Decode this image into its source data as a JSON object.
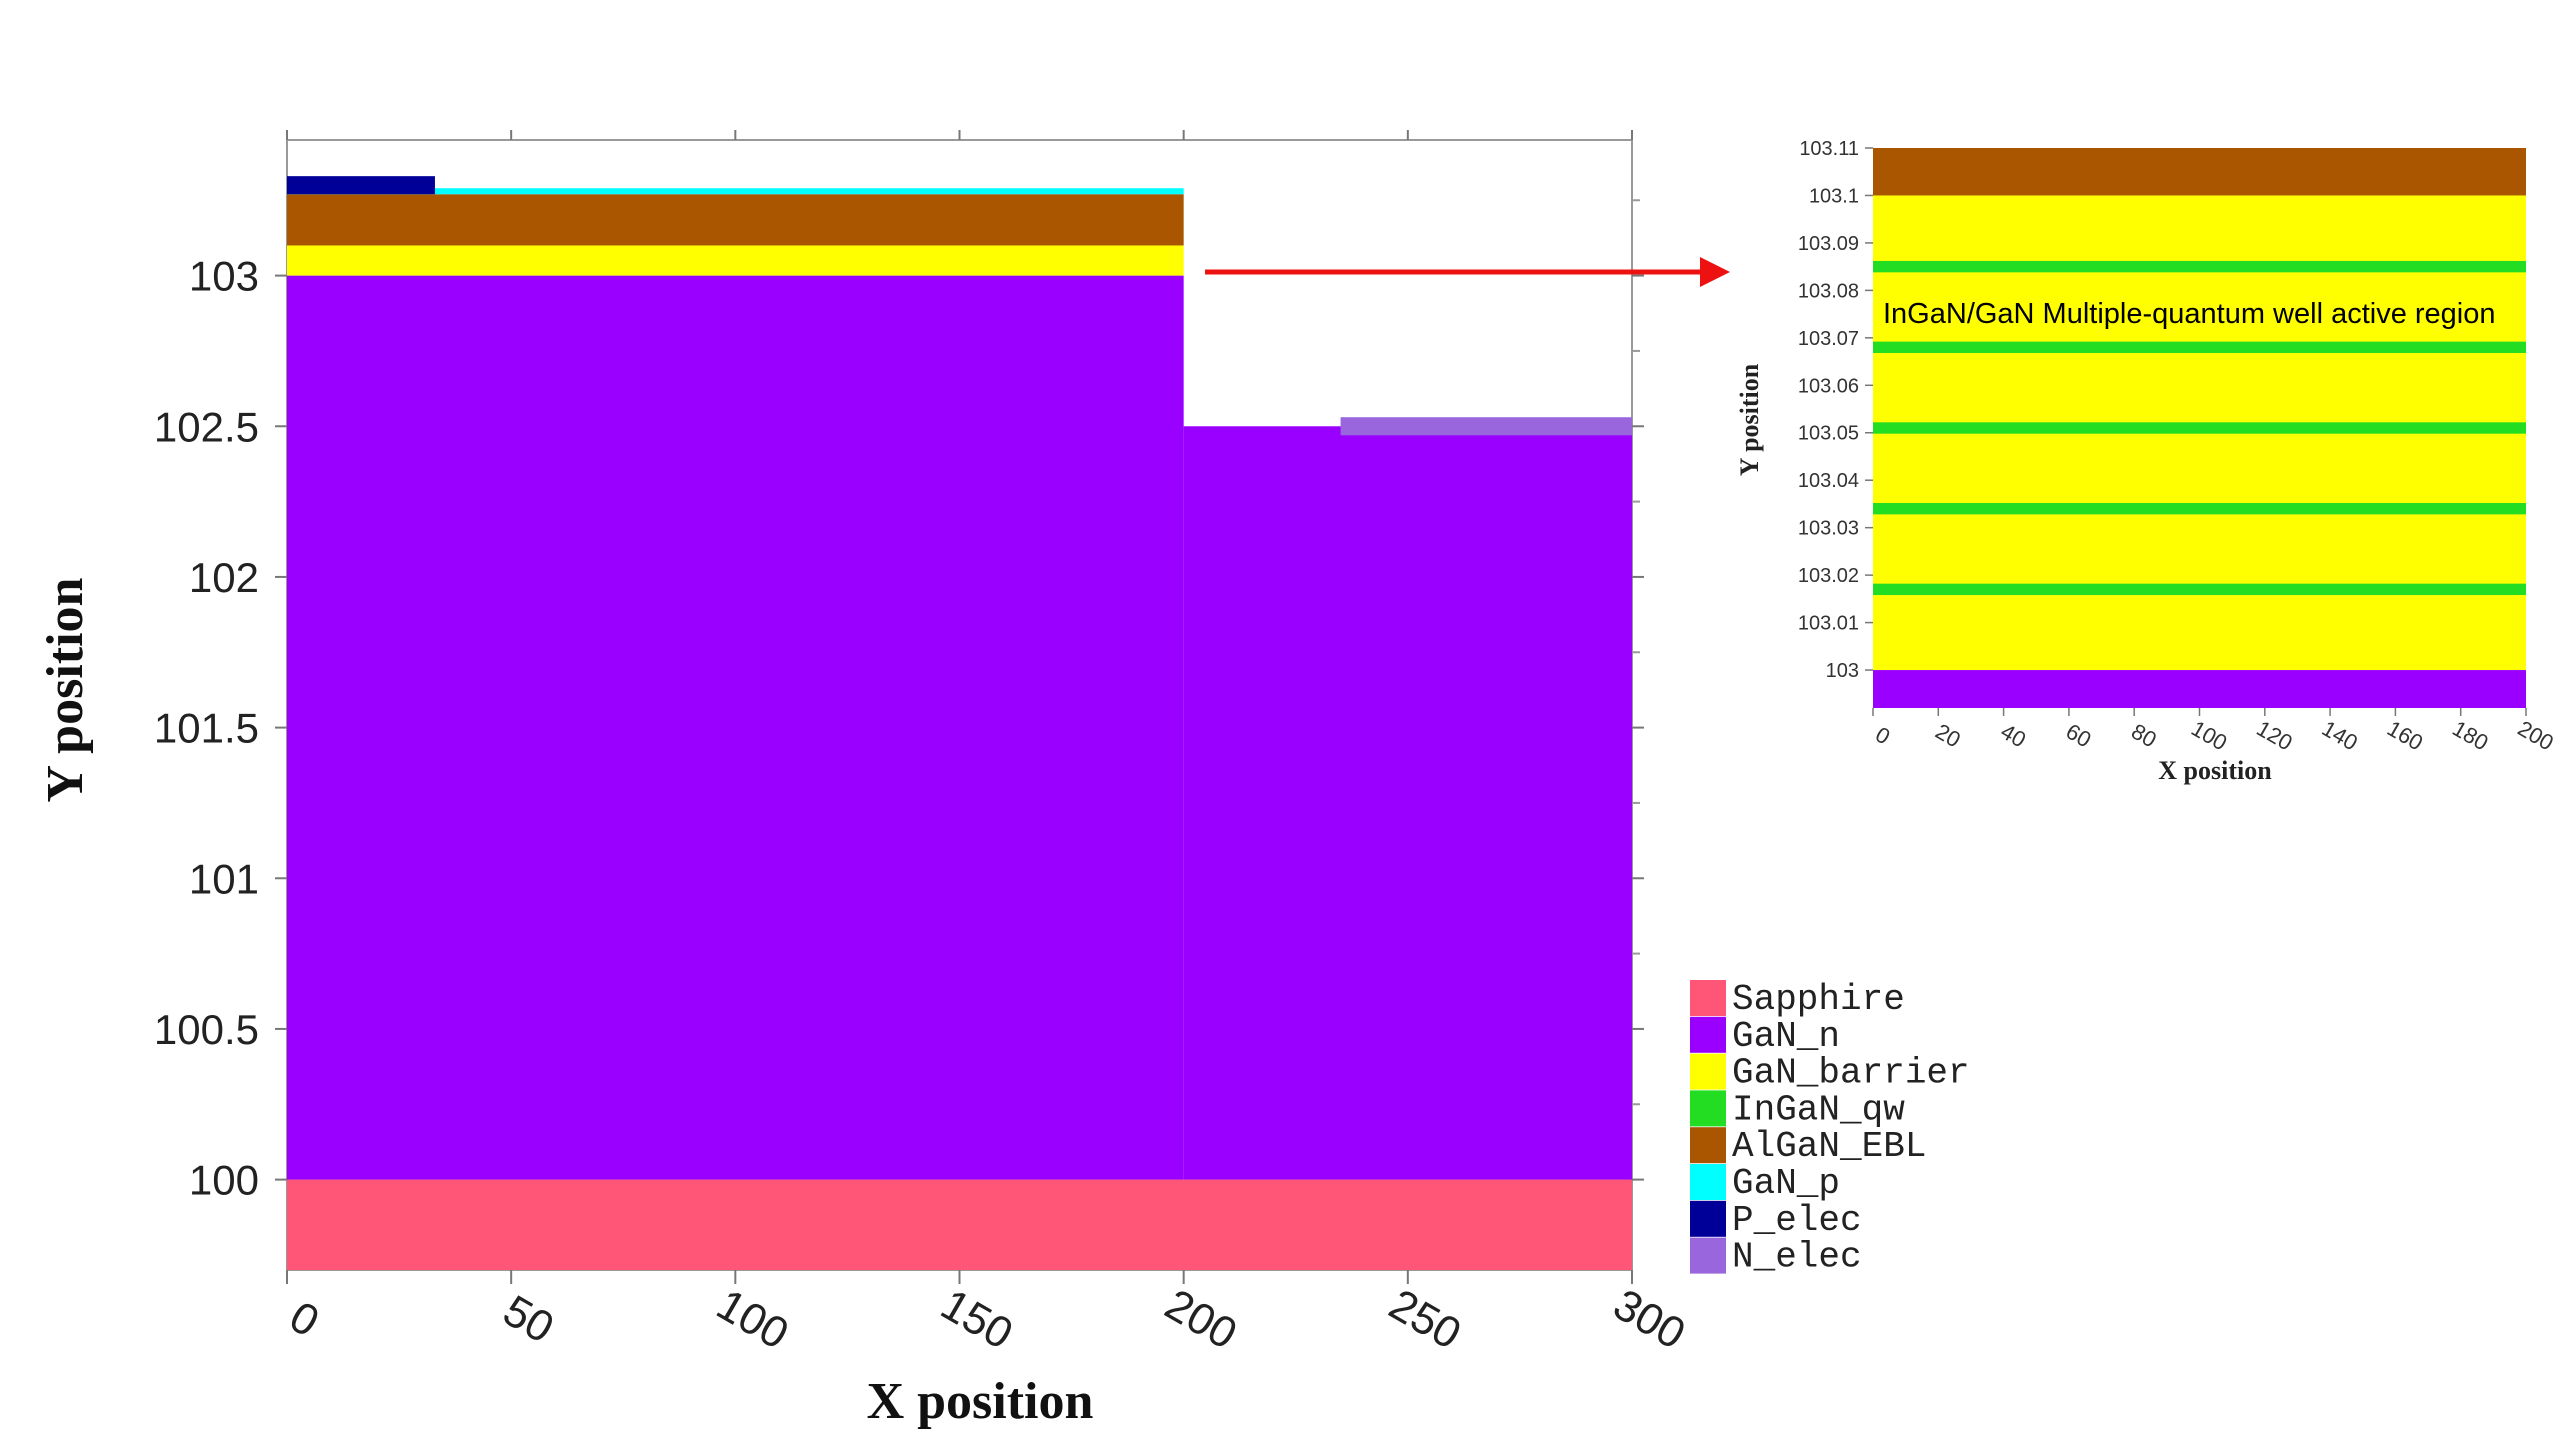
{
  "colors": {
    "Sapphire": "#ff5577",
    "GaN_n": "#9900ff",
    "GaN_barrier": "#ffff00",
    "InGaN_qw": "#22dd22",
    "AlGaN_EBL": "#aa5500",
    "GaN_p": "#00ffff",
    "P_elec": "#000099",
    "N_elec": "#9966dd",
    "arrow": "#ee1111"
  },
  "main_plot": {
    "xlabel": "X position",
    "ylabel": "Y position",
    "xlim": [
      0,
      300
    ],
    "ylim": [
      99.7,
      103.45
    ],
    "x_ticks": [
      "0",
      "50",
      "100",
      "150",
      "200",
      "250",
      "300"
    ],
    "y_ticks": [
      "100",
      "100.5",
      "101",
      "101.5",
      "102",
      "102.5",
      "103"
    ],
    "regions": [
      {
        "material": "Sapphire",
        "x": [
          0,
          300
        ],
        "y": [
          99.7,
          100
        ]
      },
      {
        "material": "GaN_n",
        "x": [
          0,
          200
        ],
        "y": [
          100,
          103
        ]
      },
      {
        "material": "GaN_n",
        "x": [
          200,
          300
        ],
        "y": [
          100,
          102.5
        ]
      },
      {
        "material": "GaN_barrier",
        "x": [
          0,
          200
        ],
        "y": [
          103,
          103.1
        ]
      },
      {
        "material": "AlGaN_EBL",
        "x": [
          0,
          200
        ],
        "y": [
          103.1,
          103.27
        ]
      },
      {
        "material": "GaN_p",
        "x": [
          0,
          200
        ],
        "y": [
          103.27,
          103.29
        ]
      },
      {
        "material": "P_elec",
        "x": [
          0,
          33
        ],
        "y": [
          103.27,
          103.33
        ]
      },
      {
        "material": "N_elec",
        "x": [
          235,
          300
        ],
        "y": [
          102.47,
          102.53
        ]
      }
    ]
  },
  "legend": [
    {
      "label": "Sapphire",
      "material": "Sapphire"
    },
    {
      "label": "GaN_n",
      "material": "GaN_n"
    },
    {
      "label": "GaN_barrier",
      "material": "GaN_barrier"
    },
    {
      "label": "InGaN_qw",
      "material": "InGaN_qw"
    },
    {
      "label": "AlGaN_EBL",
      "material": "AlGaN_EBL"
    },
    {
      "label": "GaN_p",
      "material": "GaN_p"
    },
    {
      "label": "P_elec",
      "material": "P_elec"
    },
    {
      "label": "N_elec",
      "material": "N_elec"
    }
  ],
  "inset": {
    "xlabel": "X position",
    "ylabel": "Y position",
    "xlim": [
      0,
      200
    ],
    "ylim": [
      102.992,
      103.11
    ],
    "x_ticks": [
      "0",
      "20",
      "40",
      "60",
      "80",
      "100",
      "120",
      "140",
      "160",
      "180",
      "200"
    ],
    "y_ticks": [
      "103",
      "103.01",
      "103.02",
      "103.03",
      "103.04",
      "103.05",
      "103.06",
      "103.07",
      "103.08",
      "103.09",
      "103.1",
      "103.11"
    ],
    "annotation": "InGaN/GaN Multiple-quantum well active region",
    "regions": [
      {
        "material": "GaN_n",
        "x": [
          0,
          200
        ],
        "y": [
          102.992,
          103.0
        ]
      },
      {
        "material": "GaN_barrier",
        "x": [
          0,
          200
        ],
        "y": [
          103.0,
          103.1
        ]
      },
      {
        "material": "AlGaN_EBL",
        "x": [
          0,
          200
        ],
        "y": [
          103.1,
          103.11
        ]
      }
    ],
    "quantum_wells": [
      103.017,
      103.034,
      103.051,
      103.068,
      103.085
    ],
    "qw_thickness": 0.0012
  }
}
